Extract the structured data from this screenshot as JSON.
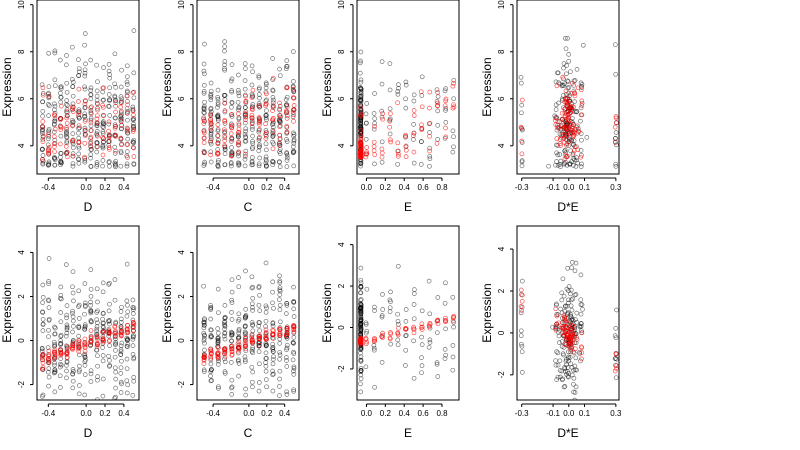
{
  "figure": {
    "background": "#ffffff"
  },
  "colors": {
    "observed": "#000000",
    "fitted": "#ff0000"
  },
  "chart_data": [
    {
      "type": "scatter",
      "row": 0,
      "col": 0,
      "xlabel": "D",
      "ylabel": "Expression",
      "xlim": [
        -0.52,
        0.56
      ],
      "ylim": [
        2.8,
        10.2
      ],
      "xticks": [
        -0.4,
        0.0,
        0.2,
        0.4
      ],
      "xtick_labels": [
        "-0.4",
        "0.0",
        "0.2",
        "0.4"
      ],
      "yticks": [
        4,
        6,
        8,
        10
      ],
      "ytick_labels": [
        "4",
        "6",
        "8",
        "10"
      ],
      "observed_dist": {
        "mode": "columns",
        "x_range": [
          -0.46,
          0.5
        ],
        "n_cols": 16,
        "per_col": 22,
        "y_mean": 5.0,
        "y_sd": 1.3,
        "y_floor": 3.1,
        "seed": 11
      },
      "fitted_dist": {
        "mode": "columns",
        "x_range": [
          -0.46,
          0.5
        ],
        "n_cols": 16,
        "per_col": 7,
        "y_mean": 4.8,
        "y_sd": 0.7,
        "y_floor": 3.4,
        "seed": 12
      }
    },
    {
      "type": "scatter",
      "row": 0,
      "col": 1,
      "xlabel": "C",
      "ylabel": "Expression",
      "xlim": [
        -0.58,
        0.56
      ],
      "ylim": [
        2.8,
        10.2
      ],
      "xticks": [
        -0.4,
        0.0,
        0.2,
        0.4
      ],
      "xtick_labels": [
        "-0.4",
        "0.0",
        "0.2",
        "0.4"
      ],
      "yticks": [
        4,
        6,
        8,
        10
      ],
      "ytick_labels": [
        "4",
        "6",
        "8",
        "10"
      ],
      "observed_dist": {
        "mode": "columns",
        "x_range": [
          -0.5,
          0.5
        ],
        "n_cols": 14,
        "per_col": 24,
        "y_mean": 5.0,
        "y_sd": 1.3,
        "y_floor": 3.1,
        "seed": 21
      },
      "fitted_dist": {
        "mode": "columns",
        "x_range": [
          -0.5,
          0.5
        ],
        "n_cols": 14,
        "per_col": 8,
        "y_mean": 4.9,
        "y_sd": 0.7,
        "y_trend": 1.5,
        "y_floor": 3.5,
        "seed": 22
      }
    },
    {
      "type": "scatter",
      "row": 0,
      "col": 2,
      "xlabel": "E",
      "ylabel": "Expression",
      "xlim": [
        -0.1,
        0.98
      ],
      "ylim": [
        2.8,
        10.2
      ],
      "xticks": [
        0.0,
        0.2,
        0.4,
        0.6,
        0.8
      ],
      "xtick_labels": [
        "0.0",
        "0.2",
        "0.4",
        "0.6",
        "0.8"
      ],
      "yticks": [
        4,
        6,
        8,
        10
      ],
      "ytick_labels": [
        "4",
        "6",
        "8",
        "10"
      ],
      "observed_dist": {
        "mode": "left-stack",
        "stack_x": -0.06,
        "stack_n": 110,
        "x_range": [
          0.0,
          0.92
        ],
        "n_cols": 12,
        "per_col": 6,
        "y_mean": 4.9,
        "y_sd": 1.3,
        "y_floor": 3.1,
        "seed": 31
      },
      "fitted_dist": {
        "mode": "left-stack",
        "stack_x": -0.06,
        "stack_n": 70,
        "x_range": [
          0.0,
          0.92
        ],
        "n_cols": 12,
        "per_col": 5,
        "y_mean": 4.6,
        "y_sd": 0.7,
        "y_trend": 2.0,
        "y_floor": 3.5,
        "seed": 32
      }
    },
    {
      "type": "scatter",
      "row": 0,
      "col": 3,
      "xlabel": "D*E",
      "ylabel": "Expression",
      "xlim": [
        -0.33,
        0.32
      ],
      "ylim": [
        2.8,
        10.2
      ],
      "xticks": [
        -0.3,
        -0.1,
        0.0,
        0.1,
        0.3
      ],
      "xtick_labels": [
        "-0.3",
        "-0.1",
        "0.0",
        "0.1",
        "0.3"
      ],
      "yticks": [
        4,
        6,
        8,
        10
      ],
      "ytick_labels": [
        "4",
        "6",
        "8",
        "10"
      ],
      "observed_dist": {
        "mode": "center-cloud",
        "center_x": 0.0,
        "x_spread": 0.035,
        "center_n": 160,
        "edge_xs": [
          -0.3,
          -0.08,
          0.08,
          0.3
        ],
        "edge_n": 10,
        "y_mean": 5.0,
        "y_sd": 1.4,
        "y_floor": 3.1,
        "seed": 41
      },
      "fitted_dist": {
        "mode": "center-cloud",
        "center_x": 0.0,
        "x_spread": 0.03,
        "center_n": 90,
        "edge_xs": [
          -0.3,
          -0.08,
          0.08,
          0.3
        ],
        "edge_n": 5,
        "y_mean": 5.0,
        "y_sd": 0.8,
        "y_floor": 3.4,
        "seed": 42
      }
    },
    {
      "type": "scatter",
      "row": 1,
      "col": 0,
      "xlabel": "D",
      "ylabel": "Expression",
      "xlim": [
        -0.52,
        0.56
      ],
      "ylim": [
        -2.7,
        5.2
      ],
      "xticks": [
        -0.4,
        0.0,
        0.2,
        0.4
      ],
      "xtick_labels": [
        "-0.4",
        "0.0",
        "0.2",
        "0.4"
      ],
      "yticks": [
        -2,
        0,
        2,
        4
      ],
      "ytick_labels": [
        "-2",
        "0",
        "2",
        "4"
      ],
      "observed_dist": {
        "mode": "columns",
        "x_range": [
          -0.46,
          0.5
        ],
        "n_cols": 16,
        "per_col": 20,
        "y_mean": 0.0,
        "y_sd": 1.3,
        "seed": 51
      },
      "fitted_dist": {
        "mode": "columns",
        "x_range": [
          -0.46,
          0.5
        ],
        "n_cols": 16,
        "per_col": 7,
        "y_mean": -0.1,
        "y_sd": 0.15,
        "y_trend": 1.5,
        "seed": 52
      }
    },
    {
      "type": "scatter",
      "row": 1,
      "col": 1,
      "xlabel": "C",
      "ylabel": "Expression",
      "xlim": [
        -0.58,
        0.56
      ],
      "ylim": [
        -2.7,
        5.2
      ],
      "xticks": [
        -0.4,
        0.0,
        0.2,
        0.4
      ],
      "xtick_labels": [
        "-0.4",
        "0.0",
        "0.2",
        "0.4"
      ],
      "yticks": [
        -2,
        0,
        2,
        4
      ],
      "ytick_labels": [
        "-2",
        "0",
        "2",
        "4"
      ],
      "observed_dist": {
        "mode": "columns",
        "x_range": [
          -0.5,
          0.5
        ],
        "n_cols": 14,
        "per_col": 22,
        "y_mean": 0.0,
        "y_sd": 1.3,
        "seed": 61
      },
      "fitted_dist": {
        "mode": "columns",
        "x_range": [
          -0.5,
          0.5
        ],
        "n_cols": 14,
        "per_col": 8,
        "y_mean": -0.1,
        "y_sd": 0.15,
        "y_trend": 1.4,
        "seed": 62
      }
    },
    {
      "type": "scatter",
      "row": 1,
      "col": 2,
      "xlabel": "E",
      "ylabel": "Expression",
      "xlim": [
        -0.1,
        0.98
      ],
      "ylim": [
        -3.5,
        4.9
      ],
      "xticks": [
        0.0,
        0.2,
        0.4,
        0.6,
        0.8
      ],
      "xtick_labels": [
        "0.0",
        "0.2",
        "0.4",
        "0.6",
        "0.8"
      ],
      "yticks": [
        -2,
        0,
        2,
        4
      ],
      "ytick_labels": [
        "-2",
        "0",
        "2",
        "4"
      ],
      "observed_dist": {
        "mode": "left-stack",
        "stack_x": -0.06,
        "stack_n": 110,
        "x_range": [
          0.0,
          0.92
        ],
        "n_cols": 12,
        "per_col": 6,
        "y_mean": 0.0,
        "y_sd": 1.3,
        "seed": 71
      },
      "fitted_dist": {
        "mode": "left-stack",
        "stack_x": -0.06,
        "stack_n": 25,
        "x_range": [
          0.0,
          0.92
        ],
        "n_cols": 12,
        "per_col": 4,
        "y_mean": -0.1,
        "y_sd": 0.1,
        "y_trend": 1.1,
        "seed": 72
      }
    },
    {
      "type": "scatter",
      "row": 1,
      "col": 3,
      "xlabel": "D*E",
      "ylabel": "Expression",
      "xlim": [
        -0.33,
        0.32
      ],
      "ylim": [
        -3.2,
        5.1
      ],
      "xticks": [
        -0.3,
        -0.1,
        0.0,
        0.1,
        0.3
      ],
      "xtick_labels": [
        "-0.3",
        "-0.1",
        "0.0",
        "0.1",
        "0.3"
      ],
      "yticks": [
        -2,
        0,
        2,
        4
      ],
      "ytick_labels": [
        "-2",
        "0",
        "2",
        "4"
      ],
      "observed_dist": {
        "mode": "center-cloud",
        "center_x": 0.0,
        "x_spread": 0.035,
        "center_n": 160,
        "edge_xs": [
          -0.3,
          -0.08,
          0.08,
          0.3
        ],
        "edge_n": 10,
        "y_mean": 0.0,
        "y_sd": 1.4,
        "seed": 81
      },
      "fitted_dist": {
        "mode": "center-cloud",
        "center_x": 0.0,
        "x_spread": 0.03,
        "center_n": 60,
        "edge_xs": [
          -0.3,
          -0.08,
          0.08,
          0.3
        ],
        "edge_n": 5,
        "y_mean": 0.0,
        "y_sd": 0.4,
        "y_slope": -5.0,
        "seed": 82
      }
    }
  ]
}
